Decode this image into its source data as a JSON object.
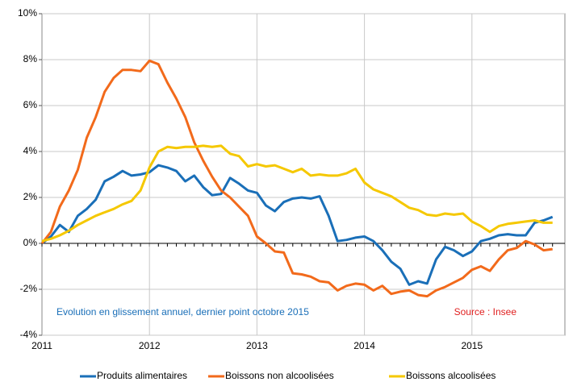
{
  "chart_data": {
    "type": "line",
    "categories": [
      "2011",
      null,
      null,
      null,
      null,
      null,
      null,
      null,
      null,
      null,
      null,
      null,
      "2012",
      null,
      null,
      null,
      null,
      null,
      null,
      null,
      null,
      null,
      null,
      null,
      "2013",
      null,
      null,
      null,
      null,
      null,
      null,
      null,
      null,
      null,
      null,
      null,
      "2014",
      null,
      null,
      null,
      null,
      null,
      null,
      null,
      null,
      null,
      null,
      null,
      "2015",
      null,
      null,
      null,
      null,
      null,
      null,
      null,
      null,
      null
    ],
    "series": [
      {
        "name": "Produits alimentaires",
        "color": "#1a6fb8",
        "values": [
          0.0,
          0.3,
          0.8,
          0.5,
          1.2,
          1.5,
          1.9,
          2.7,
          2.9,
          3.15,
          2.95,
          3.0,
          3.1,
          3.4,
          3.3,
          3.15,
          2.7,
          2.95,
          2.45,
          2.1,
          2.15,
          2.85,
          2.6,
          2.3,
          2.2,
          1.65,
          1.4,
          1.8,
          1.95,
          2.0,
          1.95,
          2.05,
          1.2,
          0.1,
          0.15,
          0.25,
          0.3,
          0.1,
          -0.3,
          -0.8,
          -1.1,
          -1.8,
          -1.65,
          -1.75,
          -0.7,
          -0.15,
          -0.3,
          -0.55,
          -0.35,
          0.1,
          0.2,
          0.35,
          0.4,
          0.35,
          0.35,
          0.9,
          1.0,
          1.15
        ]
      },
      {
        "name": "Boissons non alcoolisées",
        "color": "#f26a1b",
        "values": [
          0.0,
          0.5,
          1.6,
          2.3,
          3.2,
          4.6,
          5.5,
          6.6,
          7.2,
          7.55,
          7.55,
          7.5,
          7.95,
          7.8,
          7.0,
          6.3,
          5.5,
          4.4,
          3.6,
          2.9,
          2.3,
          2.0,
          1.6,
          1.2,
          0.3,
          0.0,
          -0.35,
          -0.4,
          -1.3,
          -1.35,
          -1.45,
          -1.65,
          -1.7,
          -2.05,
          -1.85,
          -1.75,
          -1.8,
          -2.05,
          -1.85,
          -2.2,
          -2.1,
          -2.05,
          -2.25,
          -2.3,
          -2.05,
          -1.9,
          -1.7,
          -1.5,
          -1.15,
          -1.0,
          -1.2,
          -0.7,
          -0.3,
          -0.2,
          0.1,
          -0.05,
          -0.3,
          -0.25
        ]
      },
      {
        "name": "Boissons alcoolisées",
        "color": "#f5c800",
        "values": [
          0.1,
          0.2,
          0.35,
          0.55,
          0.8,
          1.0,
          1.2,
          1.35,
          1.5,
          1.7,
          1.85,
          2.3,
          3.3,
          4.0,
          4.2,
          4.15,
          4.2,
          4.2,
          4.25,
          4.2,
          4.25,
          3.9,
          3.8,
          3.35,
          3.45,
          3.35,
          3.4,
          3.25,
          3.1,
          3.25,
          2.95,
          3.0,
          2.95,
          2.95,
          3.05,
          3.25,
          2.65,
          2.35,
          2.2,
          2.05,
          1.8,
          1.55,
          1.45,
          1.25,
          1.2,
          1.3,
          1.25,
          1.3,
          0.95,
          0.75,
          0.5,
          0.75,
          0.85,
          0.9,
          0.95,
          1.0,
          0.9,
          0.9
        ]
      }
    ],
    "ylim": [
      -4,
      10
    ],
    "yticks": [
      {
        "value": -4,
        "label": "-4%"
      },
      {
        "value": -2,
        "label": "-2%"
      },
      {
        "value": 0,
        "label": "0%"
      },
      {
        "value": 2,
        "label": "2%"
      },
      {
        "value": 4,
        "label": "4%"
      },
      {
        "value": 6,
        "label": "6%"
      },
      {
        "value": 8,
        "label": "8%"
      },
      {
        "value": 10,
        "label": "10%"
      }
    ],
    "grid": true,
    "legend": "bottom",
    "annotations": [
      {
        "text": "Evolution en glissement annuel, dernier point octobre 2015",
        "color": "#1a6fb8"
      },
      {
        "text": "Source : Insee",
        "color": "#e02020"
      }
    ]
  }
}
